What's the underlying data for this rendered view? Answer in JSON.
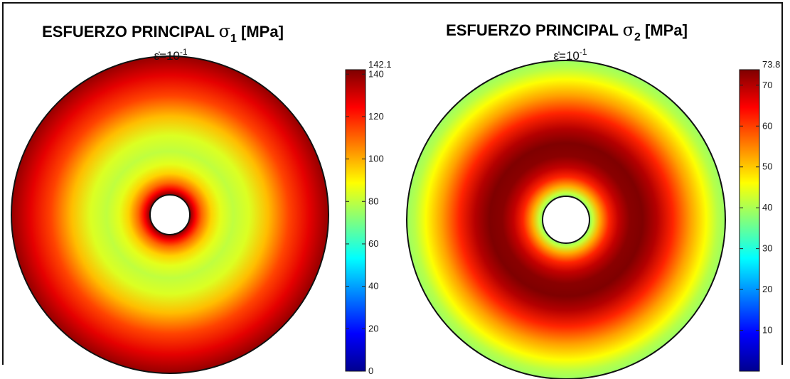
{
  "colormap": [
    "#00008f",
    "#0000ff",
    "#007fff",
    "#00ffff",
    "#7fff7f",
    "#ffff00",
    "#ff7f00",
    "#ff0000",
    "#7f0000"
  ],
  "chart_data": [
    {
      "type": "heatmap",
      "subtype": "annulus-contour",
      "title": {
        "prefix": "ESFUERZO PRINCIPAL ",
        "symbol": "σ",
        "subscript": "1",
        "suffix": " [MPa]"
      },
      "subtitle": {
        "base": "ε̇=10",
        "exponent": "-1"
      },
      "colorbar": {
        "min": 0,
        "max": 142.1,
        "max_label": "142.1",
        "ticks": [
          0,
          20,
          40,
          60,
          80,
          100,
          120,
          140
        ],
        "tick_labels": [
          "0",
          "20",
          "40",
          "60",
          "80",
          "100",
          "120",
          "140"
        ]
      },
      "radial_profile": {
        "r_normalized": [
          0.125,
          0.16,
          0.2,
          0.26,
          0.32,
          0.4,
          0.5,
          0.62,
          0.75,
          0.88,
          1.0
        ],
        "value": [
          142.1,
          125,
          110,
          95,
          85,
          80,
          84,
          98,
          115,
          128,
          139
        ]
      }
    },
    {
      "type": "heatmap",
      "subtype": "annulus-contour",
      "title": {
        "prefix": "ESFUERZO PRINCIPAL ",
        "symbol": "σ",
        "subscript": "2",
        "suffix": " [MPa]"
      },
      "subtitle": {
        "base": "ε̇=10",
        "exponent": "-1"
      },
      "colorbar": {
        "min": 0,
        "max": 73.8,
        "max_label": "73.8",
        "ticks": [
          10,
          20,
          30,
          40,
          50,
          60,
          70
        ],
        "tick_labels": [
          "10",
          "20",
          "30",
          "40",
          "50",
          "60",
          "70"
        ]
      },
      "radial_profile": {
        "r_normalized": [
          0.145,
          0.17,
          0.21,
          0.27,
          0.33,
          0.4,
          0.48,
          0.57,
          0.67,
          0.78,
          0.88,
          0.95,
          1.0
        ],
        "value": [
          38,
          42,
          52,
          62,
          69,
          73,
          73.8,
          70,
          62,
          53,
          46,
          41,
          39
        ]
      }
    }
  ]
}
